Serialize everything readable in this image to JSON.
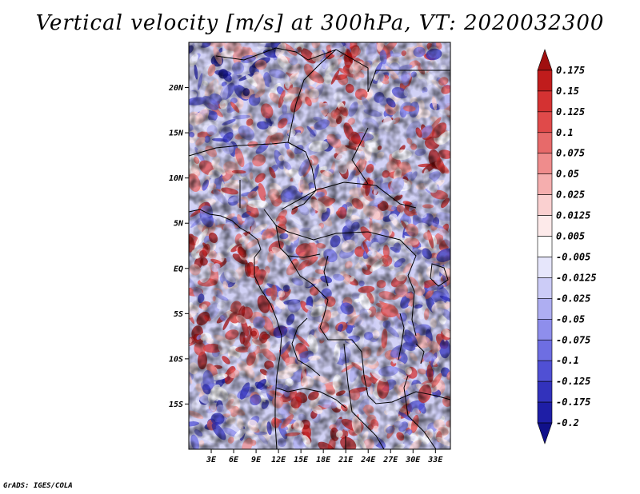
{
  "title": "Vertical velocity [m/s] at 300hPa, VT: 2020032300",
  "credit": "GrADS: IGES/COLA",
  "map": {
    "lon_range": [
      0,
      35
    ],
    "lat_range": [
      -20,
      25
    ],
    "lat_ticks": [
      "20N",
      "15N",
      "10N",
      "5N",
      "EQ",
      "5S",
      "10S",
      "15S"
    ],
    "lon_ticks": [
      "3E",
      "6E",
      "9E",
      "12E",
      "15E",
      "18E",
      "21E",
      "24E",
      "27E",
      "30E",
      "33E"
    ]
  },
  "colorbar": {
    "levels": [
      "0.175",
      "0.15",
      "0.125",
      "0.1",
      "0.075",
      "0.05",
      "0.025",
      "0.0125",
      "0.005",
      "-0.005",
      "-0.0125",
      "-0.025",
      "-0.05",
      "-0.075",
      "-0.1",
      "-0.125",
      "-0.175",
      "-0.2"
    ],
    "colors": [
      "#a00f0f",
      "#c01c1c",
      "#d43232",
      "#e04a4a",
      "#e76a6a",
      "#ef8c8c",
      "#f5aeae",
      "#fad0d0",
      "#fdeaea",
      "#ffffff",
      "#e6e6fb",
      "#ccccf7",
      "#aeaef2",
      "#8e8eec",
      "#6e6ee2",
      "#5050d4",
      "#3232bc",
      "#1e1ea6",
      "#10108a"
    ]
  }
}
